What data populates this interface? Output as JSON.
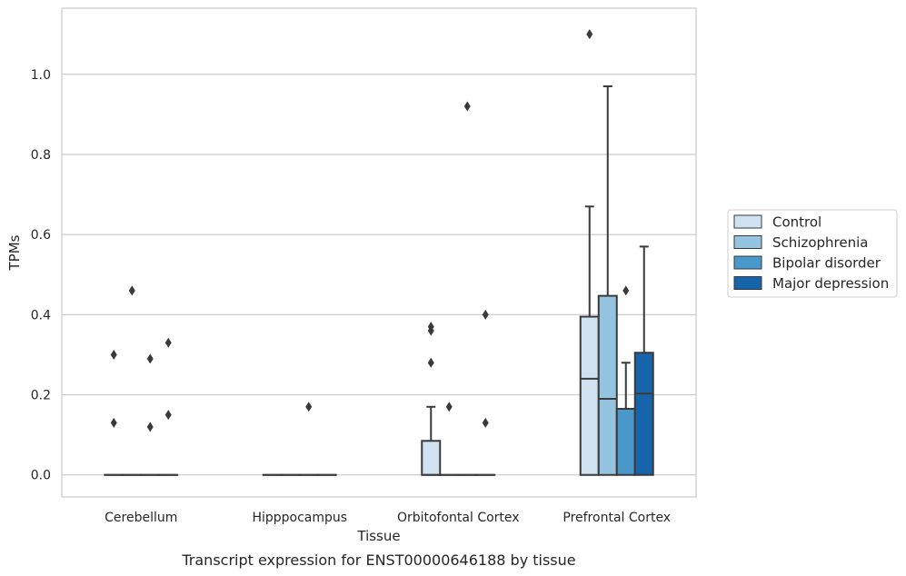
{
  "chart_data": {
    "type": "box",
    "xlabel": "Tissue",
    "ylabel": "TPMs",
    "caption": "Transcript expression for ENST00000646188 by tissue",
    "ylim": [
      -0.055,
      1.165
    ],
    "yticks": [
      0.0,
      0.2,
      0.4,
      0.6,
      0.8,
      1.0
    ],
    "ytick_labels": [
      "0.0",
      "0.2",
      "0.4",
      "0.6",
      "0.8",
      "1.0"
    ],
    "categories": [
      "Cerebellum",
      "Hipppocampus",
      "Orbitofontal Cortex",
      "Prefrontal Cortex"
    ],
    "grid": "horizontal",
    "legend_position": "right",
    "series": [
      {
        "name": "Control",
        "color": "#d0e1f2",
        "boxes": [
          {
            "q1": 0,
            "median": 0,
            "q3": 0,
            "whisker_low": 0,
            "whisker_high": 0,
            "outliers": [
              0.13,
              0.3
            ]
          },
          {
            "q1": 0,
            "median": 0,
            "q3": 0,
            "whisker_low": 0,
            "whisker_high": 0,
            "outliers": []
          },
          {
            "q1": 0,
            "median": 0,
            "q3": 0.085,
            "whisker_low": 0,
            "whisker_high": 0.17,
            "outliers": [
              0.28,
              0.36,
              0.37
            ]
          },
          {
            "q1": 0,
            "median": 0.24,
            "q3": 0.395,
            "whisker_low": 0,
            "whisker_high": 0.67,
            "outliers": [
              1.1
            ]
          }
        ]
      },
      {
        "name": "Schizophrenia",
        "color": "#94c4df",
        "boxes": [
          {
            "q1": 0,
            "median": 0,
            "q3": 0,
            "whisker_low": 0,
            "whisker_high": 0,
            "outliers": [
              0.46
            ]
          },
          {
            "q1": 0,
            "median": 0,
            "q3": 0,
            "whisker_low": 0,
            "whisker_high": 0,
            "outliers": []
          },
          {
            "q1": 0,
            "median": 0,
            "q3": 0,
            "whisker_low": 0,
            "whisker_high": 0,
            "outliers": [
              0.17
            ]
          },
          {
            "q1": 0,
            "median": 0.19,
            "q3": 0.447,
            "whisker_low": 0,
            "whisker_high": 0.97,
            "outliers": []
          }
        ]
      },
      {
        "name": "Bipolar disorder",
        "color": "#4a98c9",
        "boxes": [
          {
            "q1": 0,
            "median": 0,
            "q3": 0,
            "whisker_low": 0,
            "whisker_high": 0,
            "outliers": [
              0.12,
              0.29
            ]
          },
          {
            "q1": 0,
            "median": 0,
            "q3": 0,
            "whisker_low": 0,
            "whisker_high": 0,
            "outliers": [
              0.17
            ]
          },
          {
            "q1": 0,
            "median": 0,
            "q3": 0,
            "whisker_low": 0,
            "whisker_high": 0,
            "outliers": [
              0.92
            ]
          },
          {
            "q1": 0,
            "median": 0.165,
            "q3": 0.165,
            "whisker_low": 0,
            "whisker_high": 0.28,
            "outliers": [
              0.46
            ]
          }
        ]
      },
      {
        "name": "Major depression",
        "color": "#1764ab",
        "boxes": [
          {
            "q1": 0,
            "median": 0,
            "q3": 0,
            "whisker_low": 0,
            "whisker_high": 0,
            "outliers": [
              0.15,
              0.33
            ]
          },
          {
            "q1": 0,
            "median": 0,
            "q3": 0,
            "whisker_low": 0,
            "whisker_high": 0,
            "outliers": []
          },
          {
            "q1": 0,
            "median": 0,
            "q3": 0,
            "whisker_low": 0,
            "whisker_high": 0,
            "outliers": [
              0.13,
              0.4
            ]
          },
          {
            "q1": 0,
            "median": 0.203,
            "q3": 0.305,
            "whisker_low": 0,
            "whisker_high": 0.57,
            "outliers": []
          }
        ]
      }
    ]
  }
}
